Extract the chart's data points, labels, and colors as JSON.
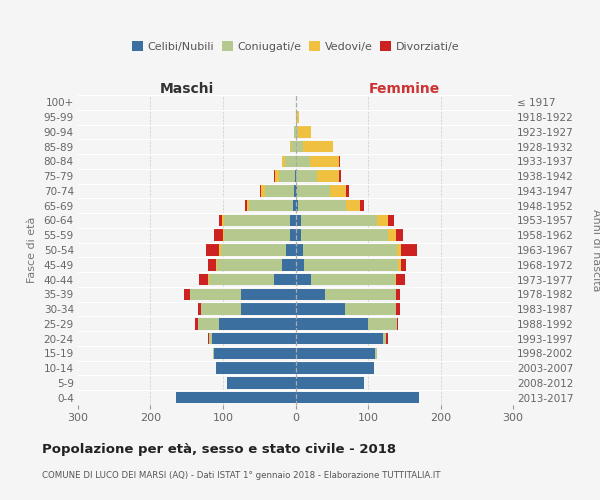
{
  "age_groups": [
    "0-4",
    "5-9",
    "10-14",
    "15-19",
    "20-24",
    "25-29",
    "30-34",
    "35-39",
    "40-44",
    "45-49",
    "50-54",
    "55-59",
    "60-64",
    "65-69",
    "70-74",
    "75-79",
    "80-84",
    "85-89",
    "90-94",
    "95-99",
    "100+"
  ],
  "birth_years": [
    "2013-2017",
    "2008-2012",
    "2003-2007",
    "1998-2002",
    "1993-1997",
    "1988-1992",
    "1983-1987",
    "1978-1982",
    "1973-1977",
    "1968-1972",
    "1963-1967",
    "1958-1962",
    "1953-1957",
    "1948-1952",
    "1943-1947",
    "1938-1942",
    "1933-1937",
    "1928-1932",
    "1923-1927",
    "1918-1922",
    "≤ 1917"
  ],
  "maschi": {
    "celibi": [
      165,
      95,
      110,
      112,
      115,
      105,
      75,
      75,
      30,
      18,
      13,
      8,
      8,
      4,
      2,
      1,
      0,
      0,
      0,
      0,
      0
    ],
    "coniugati": [
      0,
      0,
      0,
      2,
      5,
      30,
      55,
      70,
      90,
      90,
      90,
      90,
      90,
      60,
      40,
      22,
      14,
      6,
      2,
      0,
      0
    ],
    "vedovi": [
      0,
      0,
      0,
      0,
      0,
      0,
      0,
      1,
      1,
      1,
      2,
      2,
      3,
      3,
      5,
      5,
      5,
      2,
      0,
      0,
      0
    ],
    "divorziati": [
      0,
      0,
      0,
      0,
      1,
      3,
      5,
      8,
      12,
      12,
      18,
      12,
      5,
      3,
      2,
      2,
      0,
      0,
      0,
      0,
      0
    ]
  },
  "femmine": {
    "nubili": [
      170,
      95,
      108,
      110,
      120,
      100,
      68,
      40,
      22,
      12,
      10,
      8,
      8,
      4,
      2,
      0,
      0,
      0,
      0,
      0,
      0
    ],
    "coniugate": [
      0,
      0,
      0,
      2,
      5,
      40,
      70,
      98,
      115,
      130,
      130,
      120,
      105,
      65,
      45,
      30,
      20,
      10,
      4,
      2,
      0
    ],
    "vedove": [
      0,
      0,
      0,
      0,
      0,
      0,
      1,
      1,
      2,
      3,
      5,
      10,
      15,
      20,
      22,
      30,
      40,
      42,
      18,
      3,
      0
    ],
    "divorziate": [
      0,
      0,
      0,
      0,
      2,
      2,
      5,
      5,
      12,
      8,
      22,
      10,
      8,
      5,
      5,
      3,
      2,
      0,
      0,
      0,
      0
    ]
  },
  "colors": {
    "celibi": "#3b6fa0",
    "coniugati": "#b5c98e",
    "vedovi": "#f0c040",
    "divorziati": "#cc2222"
  },
  "title": "Popolazione per età, sesso e stato civile - 2018",
  "subtitle": "COMUNE DI LUCO DEI MARSI (AQ) - Dati ISTAT 1° gennaio 2018 - Elaborazione TUTTITALIA.IT",
  "xlabel_left": "Maschi",
  "xlabel_right": "Femmine",
  "ylabel_left": "Fasce di età",
  "ylabel_right": "Anni di nascita",
  "xlim": 300,
  "background_color": "#f5f5f5",
  "grid_color": "#cccccc"
}
